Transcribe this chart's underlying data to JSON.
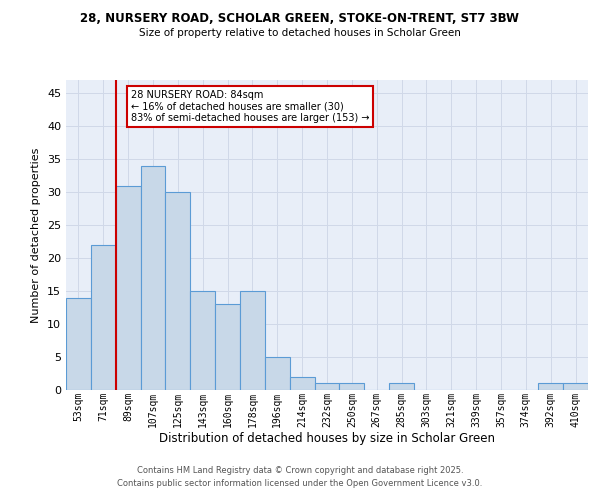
{
  "title1": "28, NURSERY ROAD, SCHOLAR GREEN, STOKE-ON-TRENT, ST7 3BW",
  "title2": "Size of property relative to detached houses in Scholar Green",
  "xlabel": "Distribution of detached houses by size in Scholar Green",
  "ylabel": "Number of detached properties",
  "categories": [
    "53sqm",
    "71sqm",
    "89sqm",
    "107sqm",
    "125sqm",
    "143sqm",
    "160sqm",
    "178sqm",
    "196sqm",
    "214sqm",
    "232sqm",
    "250sqm",
    "267sqm",
    "285sqm",
    "303sqm",
    "321sqm",
    "339sqm",
    "357sqm",
    "374sqm",
    "392sqm",
    "410sqm"
  ],
  "values": [
    14,
    22,
    31,
    34,
    30,
    15,
    13,
    15,
    5,
    2,
    1,
    1,
    0,
    1,
    0,
    0,
    0,
    0,
    0,
    1,
    1
  ],
  "bar_color": "#c8d8e8",
  "bar_edge_color": "#5b9bd5",
  "red_line_index": 1,
  "annotation_text": "28 NURSERY ROAD: 84sqm\n← 16% of detached houses are smaller (30)\n83% of semi-detached houses are larger (153) →",
  "annotation_box_color": "#ffffff",
  "annotation_border_color": "#cc0000",
  "grid_color": "#d0d8e8",
  "background_color": "#e8eef8",
  "ylim": [
    0,
    47
  ],
  "yticks": [
    0,
    5,
    10,
    15,
    20,
    25,
    30,
    35,
    40,
    45
  ],
  "footer_line1": "Contains HM Land Registry data © Crown copyright and database right 2025.",
  "footer_line2": "Contains public sector information licensed under the Open Government Licence v3.0."
}
